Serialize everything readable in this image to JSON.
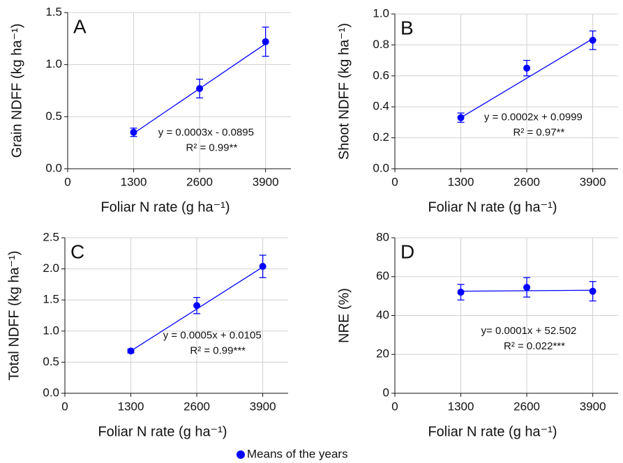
{
  "chart_data": [
    {
      "type": "scatter",
      "panel_label": "A",
      "y_label": "Grain NDFF (kg ha⁻¹)",
      "x_label": "Foliar N rate (g ha⁻¹)",
      "x": [
        1300,
        2600,
        3900
      ],
      "series": [
        {
          "name": "Means of the years",
          "color": "#0000ff",
          "values": [
            0.35,
            0.77,
            1.22
          ],
          "errors": [
            0.04,
            0.09,
            0.14
          ]
        }
      ],
      "fit_line": {
        "x": [
          1300,
          3900
        ],
        "y": [
          0.34,
          1.2
        ]
      },
      "equation": "y = 0.0003x - 0.0895",
      "r_squared": "R² = 0.99**",
      "xlim": [
        0,
        4400
      ],
      "xticks": [
        0,
        1300,
        2600,
        3900
      ],
      "ylim": [
        0,
        1.5
      ],
      "yticks": [
        {
          "value": 0,
          "label": "0.0"
        },
        0.5,
        {
          "value": 1,
          "label": "1.0"
        },
        1.5
      ],
      "grid": true
    },
    {
      "type": "scatter",
      "panel_label": "B",
      "y_label": "Shoot NDFF (kg ha⁻¹)",
      "x_label": "Foliar N rate (g ha⁻¹)",
      "x": [
        1300,
        2600,
        3900
      ],
      "series": [
        {
          "color": "#0000ff",
          "values": [
            0.33,
            0.65,
            0.83
          ],
          "errors": [
            0.03,
            0.05,
            0.06
          ]
        }
      ],
      "fit_line": {
        "x": [
          1300,
          3900
        ],
        "y": [
          0.33,
          0.84
        ]
      },
      "equation": "y = 0.0002x + 0.0999",
      "r_squared": "R² = 0.97**",
      "xlim": [
        0,
        4400
      ],
      "xticks": [
        0,
        1300,
        2600,
        3900
      ],
      "ylim": [
        0,
        1
      ],
      "yticks": [
        {
          "value": 0,
          "label": "0.0"
        },
        0.2,
        0.4,
        0.6,
        0.8,
        {
          "value": 1,
          "label": "1.0"
        }
      ],
      "grid": true
    },
    {
      "type": "scatter",
      "panel_label": "C",
      "y_label": "Total NDFF (kg ha⁻¹)",
      "x_label": "Foliar N rate (g ha⁻¹)",
      "x": [
        1300,
        2600,
        3900
      ],
      "series": [
        {
          "color": "#0000ff",
          "values": [
            0.68,
            1.41,
            2.04
          ],
          "errors": [
            0.03,
            0.13,
            0.18
          ]
        }
      ],
      "fit_line": {
        "x": [
          1300,
          3900
        ],
        "y": [
          0.68,
          2.03
        ]
      },
      "equation": "y = 0.0005x + 0.0105",
      "r_squared": "R² = 0.99***",
      "xlim": [
        0,
        4400
      ],
      "xticks": [
        0,
        1300,
        2600,
        3900
      ],
      "ylim": [
        0,
        2.5
      ],
      "yticks": [
        {
          "value": 0,
          "label": "0.0"
        },
        0.5,
        {
          "value": 1,
          "label": "1.0"
        },
        1.5,
        {
          "value": 2,
          "label": "2.0"
        },
        2.5
      ],
      "grid": true
    },
    {
      "type": "scatter",
      "panel_label": "D",
      "y_label": "NRE (%)",
      "x_label": "Foliar N rate (g ha⁻¹)",
      "x": [
        1300,
        2600,
        3900
      ],
      "series": [
        {
          "color": "#0000ff",
          "values": [
            52,
            54.5,
            52.5
          ],
          "errors": [
            4,
            5,
            5
          ]
        }
      ],
      "fit_line": {
        "x": [
          1300,
          3900
        ],
        "y": [
          52.5,
          53
        ]
      },
      "equation": "y= 0.0001x + 52.502",
      "r_squared": "R² = 0.022***",
      "xlim": [
        0,
        4400
      ],
      "xticks": [
        0,
        1300,
        2600,
        3900
      ],
      "ylim": [
        0,
        80
      ],
      "yticks": [
        0,
        20,
        40,
        60,
        80
      ],
      "grid": true
    }
  ]
}
